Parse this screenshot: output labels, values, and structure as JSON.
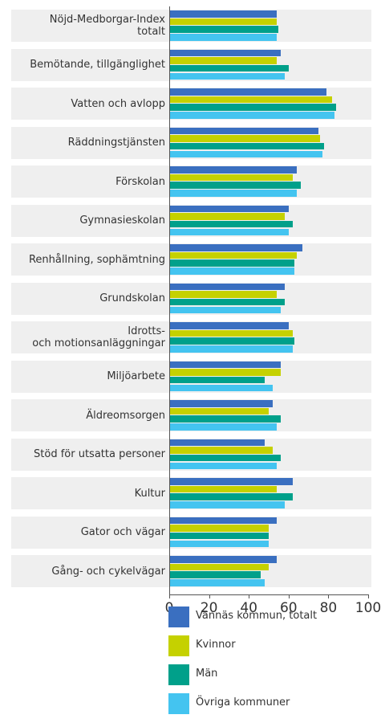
{
  "chart_data": {
    "type": "barh",
    "categories": [
      "Nöjd-Medborgar-Index\ntotalt",
      "Bemötande, tillgänglighet",
      "Vatten och avlopp",
      "Räddningstjänsten",
      "Förskolan",
      "Gymnasieskolan",
      "Renhållning, sophämtning",
      "Grundskolan",
      "Idrotts-\noch motionsanläggningar",
      "Miljöarbete",
      "Äldreomsorgen",
      "Stöd för utsatta personer",
      "Kultur",
      "Gator och vägar",
      "Gång- och cykelvägar"
    ],
    "series": [
      {
        "name": "Vännäs kommun, totalt",
        "color": "#3a6fc0",
        "values": [
          54,
          56,
          79,
          75,
          64,
          60,
          67,
          58,
          60,
          56,
          52,
          48,
          62,
          54,
          54
        ]
      },
      {
        "name": "Kvinnor",
        "color": "#c5d100",
        "values": [
          54,
          54,
          82,
          76,
          62,
          58,
          64,
          54,
          62,
          56,
          50,
          52,
          54,
          50,
          50
        ]
      },
      {
        "name": "Män",
        "color": "#00a08a",
        "values": [
          55,
          60,
          84,
          78,
          66,
          62,
          63,
          58,
          63,
          48,
          56,
          56,
          62,
          50,
          46
        ]
      },
      {
        "name": "Övriga kommuner",
        "color": "#44c4f0",
        "values": [
          54,
          58,
          83,
          77,
          64,
          60,
          63,
          56,
          62,
          52,
          54,
          54,
          58,
          50,
          48
        ]
      }
    ],
    "xlim": [
      0,
      100
    ],
    "xticks": [
      0,
      20,
      40,
      60,
      80,
      100
    ]
  }
}
